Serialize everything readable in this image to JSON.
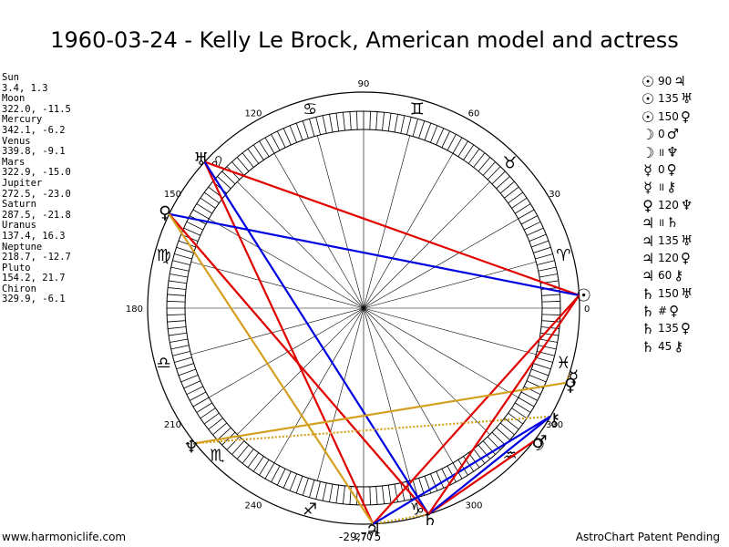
{
  "title": "1960-03-24 - Kelly Le Brock, American model and actress",
  "planets": [
    {
      "name": "Sun",
      "pos": "3.4, 1.3",
      "lon": 3.4,
      "glyph": "☉"
    },
    {
      "name": "Moon",
      "pos": "322.0, -11.5",
      "lon": 322.0,
      "glyph": "☽"
    },
    {
      "name": "Mercury",
      "pos": "342.1, -6.2",
      "lon": 342.1,
      "glyph": "☿"
    },
    {
      "name": "Venus",
      "pos": "339.8, -9.1",
      "lon": 339.8,
      "glyph": "♀"
    },
    {
      "name": "Mars",
      "pos": "322.9, -15.0",
      "lon": 322.9,
      "glyph": "♂"
    },
    {
      "name": "Jupiter",
      "pos": "272.5, -23.0",
      "lon": 272.5,
      "glyph": "♃"
    },
    {
      "name": "Saturn",
      "pos": "287.5, -21.8",
      "lon": 287.5,
      "glyph": "♄"
    },
    {
      "name": "Uranus",
      "pos": "137.4, 16.3",
      "lon": 137.4,
      "glyph": "♅"
    },
    {
      "name": "Neptune",
      "pos": "218.7, -12.7",
      "lon": 218.7,
      "glyph": "♆"
    },
    {
      "name": "Pluto",
      "pos": "154.2, 21.7",
      "lon": 154.2,
      "glyph": "♀"
    },
    {
      "name": "Chiron",
      "pos": "329.9, -6.1",
      "lon": 329.9,
      "glyph": "⚷"
    }
  ],
  "aspects": [
    {
      "p1": "☉",
      "angle": "90",
      "p2": "♃"
    },
    {
      "p1": "☉",
      "angle": "135",
      "p2": "♅"
    },
    {
      "p1": "☉",
      "angle": "150",
      "p2": "♀"
    },
    {
      "p1": "☽",
      "angle": "0",
      "p2": "♂"
    },
    {
      "p1": "☽",
      "angle": "॥",
      "p2": "♆"
    },
    {
      "p1": "☿",
      "angle": "0",
      "p2": "♀"
    },
    {
      "p1": "☿",
      "angle": "॥",
      "p2": "⚷"
    },
    {
      "p1": "♀",
      "angle": "120",
      "p2": "♆"
    },
    {
      "p1": "♃",
      "angle": "॥",
      "p2": "♄"
    },
    {
      "p1": "♃",
      "angle": "135",
      "p2": "♅"
    },
    {
      "p1": "♃",
      "angle": "120",
      "p2": "♀"
    },
    {
      "p1": "♃",
      "angle": "60",
      "p2": "⚷"
    },
    {
      "p1": "♄",
      "angle": "150",
      "p2": "♅"
    },
    {
      "p1": "♄",
      "angle": "#",
      "p2": "♀"
    },
    {
      "p1": "♄",
      "angle": "135",
      "p2": "♀"
    },
    {
      "p1": "♄",
      "angle": "45",
      "p2": "⚷"
    }
  ],
  "degree_labels": [
    {
      "deg": 0,
      "text": "0"
    },
    {
      "deg": 30,
      "text": "30"
    },
    {
      "deg": 60,
      "text": "60"
    },
    {
      "deg": 90,
      "text": "90"
    },
    {
      "deg": 120,
      "text": "120"
    },
    {
      "deg": 150,
      "text": "150"
    },
    {
      "deg": 180,
      "text": "180"
    },
    {
      "deg": 210,
      "text": "210"
    },
    {
      "deg": 240,
      "text": "240"
    },
    {
      "deg": 270,
      "text": "270"
    },
    {
      "deg": 300,
      "text": "300"
    },
    {
      "deg": 330,
      "text": "330"
    }
  ],
  "zodiac": [
    "♈",
    "♉",
    "♊",
    "♋",
    "♌",
    "♍",
    "♎",
    "♏",
    "♐",
    "♑",
    "♒",
    "♓"
  ],
  "chart_lines": [
    {
      "from": 3.4,
      "to": 137.4,
      "color": "#e00000",
      "style": "solid"
    },
    {
      "from": 3.4,
      "to": 272.5,
      "color": "#e00000",
      "style": "solid"
    },
    {
      "from": 137.4,
      "to": 272.5,
      "color": "#e00000",
      "style": "solid"
    },
    {
      "from": 137.4,
      "to": 287.5,
      "color": "#0000e0",
      "style": "solid"
    },
    {
      "from": 154.2,
      "to": 3.4,
      "color": "#0000e0",
      "style": "solid"
    },
    {
      "from": 154.2,
      "to": 287.5,
      "color": "#e00000",
      "style": "solid"
    },
    {
      "from": 154.2,
      "to": 287.5,
      "color": "#e00000",
      "style": "dotted"
    },
    {
      "from": 154.2,
      "to": 272.5,
      "color": "#d4a020",
      "style": "solid"
    },
    {
      "from": 218.7,
      "to": 339.8,
      "color": "#d4a020",
      "style": "solid"
    },
    {
      "from": 218.7,
      "to": 329.9,
      "color": "#d4a020",
      "style": "dotted"
    },
    {
      "from": 272.5,
      "to": 287.5,
      "color": "#d4a020",
      "style": "dotted"
    },
    {
      "from": 272.5,
      "to": 329.9,
      "color": "#0000e0",
      "style": "solid"
    },
    {
      "from": 287.5,
      "to": 322.0,
      "color": "#e00000",
      "style": "solid"
    },
    {
      "from": 287.5,
      "to": 329.9,
      "color": "#0000e0",
      "style": "solid"
    },
    {
      "from": 287.5,
      "to": 3.4,
      "color": "#e00000",
      "style": "solid"
    },
    {
      "from": 339.8,
      "to": 342.1,
      "color": "#d4a020",
      "style": "dotted"
    }
  ],
  "center_label": "-29,775",
  "footer": {
    "left": "www.harmoniclife.com",
    "right": "AstroChart Patent Pending"
  }
}
